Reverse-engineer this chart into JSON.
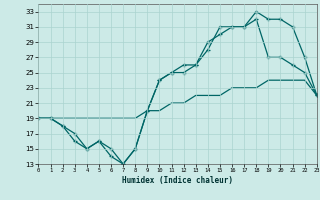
{
  "xlabel": "Humidex (Indice chaleur)",
  "bg_color": "#cceae7",
  "grid_color": "#aad4d0",
  "line_color": "#006666",
  "xlim": [
    0,
    23
  ],
  "ylim": [
    13,
    34
  ],
  "yticks": [
    13,
    15,
    17,
    19,
    21,
    23,
    25,
    27,
    29,
    31,
    33
  ],
  "xticks": [
    0,
    1,
    2,
    3,
    4,
    5,
    6,
    7,
    8,
    9,
    10,
    11,
    12,
    13,
    14,
    15,
    16,
    17,
    18,
    19,
    20,
    21,
    22,
    23
  ],
  "line1_x": [
    0,
    1,
    2,
    3,
    4,
    5,
    6,
    7,
    8,
    9,
    10,
    11,
    12,
    13,
    14,
    15,
    16,
    17,
    18,
    19,
    20,
    21,
    22,
    23
  ],
  "line1_y": [
    19,
    19,
    18,
    17,
    15,
    16,
    14,
    13,
    15,
    20,
    24,
    25,
    25,
    26,
    29,
    30,
    31,
    31,
    32,
    27,
    27,
    26,
    25,
    22
  ],
  "line2_x": [
    0,
    1,
    2,
    3,
    4,
    5,
    6,
    7,
    8,
    9,
    10,
    11,
    12,
    13,
    14,
    15,
    16,
    17,
    18,
    19,
    20,
    21,
    22,
    23
  ],
  "line2_y": [
    19,
    19,
    18,
    16,
    15,
    16,
    15,
    13,
    15,
    20,
    24,
    25,
    26,
    26,
    28,
    31,
    31,
    31,
    33,
    32,
    32,
    31,
    27,
    22
  ],
  "line3_x": [
    0,
    1,
    2,
    3,
    4,
    5,
    6,
    7,
    8,
    9,
    10,
    11,
    12,
    13,
    14,
    15,
    16,
    17,
    18,
    19,
    20,
    21,
    22,
    23
  ],
  "line3_y": [
    19,
    19,
    19,
    19,
    19,
    19,
    19,
    19,
    19,
    20,
    20,
    21,
    21,
    22,
    22,
    22,
    23,
    23,
    23,
    24,
    24,
    24,
    24,
    22
  ]
}
